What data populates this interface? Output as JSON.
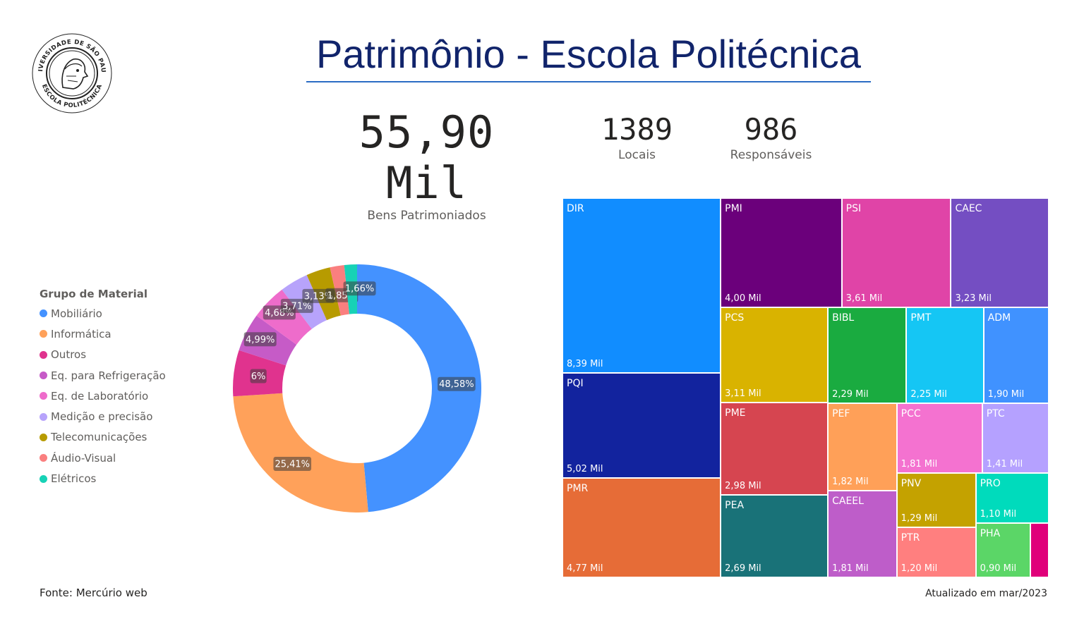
{
  "header": {
    "title": "Patrimônio - Escola Politécnica"
  },
  "logo": {
    "icon": "usp-escola-politecnica-seal-icon",
    "text": "UNIVERSIDADE DE SÃO PAULO · ESCOLA POLITÉCNICA"
  },
  "kpis": {
    "bens": {
      "value": "55,90 Mil",
      "label": "Bens Patrimoniados"
    },
    "locais": {
      "value": "1389",
      "label": "Locais"
    },
    "responsaveis": {
      "value": "986",
      "label": "Responsáveis"
    }
  },
  "legend": {
    "title": "Grupo de Material",
    "items": [
      {
        "label": "Mobiliário",
        "color": "#4492ff"
      },
      {
        "label": "Informática",
        "color": "#ffa15a"
      },
      {
        "label": "Outros",
        "color": "#e0338e"
      },
      {
        "label": "Eq. para Refrigeração",
        "color": "#c65bc7"
      },
      {
        "label": "Eq. de Laboratório",
        "color": "#ee6ccb"
      },
      {
        "label": "Medição e precisão",
        "color": "#b7a3fb"
      },
      {
        "label": "Telecomunicações",
        "color": "#b79b00"
      },
      {
        "label": "Áudio-Visual",
        "color": "#fa7f7f"
      },
      {
        "label": "Elétricos",
        "color": "#17d2b6"
      }
    ]
  },
  "chart_data": [
    {
      "type": "pie",
      "categories": [
        "Mobiliário",
        "Informática",
        "Outros",
        "Eq. para Refrigeração",
        "Eq. de Laboratório",
        "Medição e precisão",
        "Telecomunicações",
        "Áudio-Visual",
        "Elétricos"
      ],
      "values": [
        48.58,
        25.41,
        6.0,
        4.99,
        4.68,
        3.71,
        3.13,
        1.85,
        1.66
      ],
      "labels": [
        "48,58%",
        "25,41%",
        "6%",
        "4,99%",
        "4,68%",
        "3,71%",
        "3,13%",
        "1,85%",
        "1,66%"
      ],
      "colors": [
        "#4492ff",
        "#ffa15a",
        "#e0338e",
        "#c65bc7",
        "#ee6ccb",
        "#b7a3fb",
        "#b79b00",
        "#fa7f7f",
        "#17d2b6"
      ],
      "hole": true
    },
    {
      "type": "treemap",
      "items": [
        {
          "name": "DIR",
          "value": 8390,
          "label": "8,39 Mil",
          "color": "#118dff"
        },
        {
          "name": "PQI",
          "value": 5020,
          "label": "5,02 Mil",
          "color": "#12239e"
        },
        {
          "name": "PMR",
          "value": 4770,
          "label": "4,77 Mil",
          "color": "#e66c37"
        },
        {
          "name": "PMI",
          "value": 4000,
          "label": "4,00 Mil",
          "color": "#6b007b"
        },
        {
          "name": "PSI",
          "value": 3610,
          "label": "3,61 Mil",
          "color": "#e044a7"
        },
        {
          "name": "CAEC",
          "value": 3230,
          "label": "3,23 Mil",
          "color": "#744ec2"
        },
        {
          "name": "PCS",
          "value": 3110,
          "label": "3,11 Mil",
          "color": "#d9b300"
        },
        {
          "name": "PME",
          "value": 2980,
          "label": "2,98 Mil",
          "color": "#d64550"
        },
        {
          "name": "PEA",
          "value": 2690,
          "label": "2,69 Mil",
          "color": "#197278"
        },
        {
          "name": "BIBL",
          "value": 2290,
          "label": "2,29 Mil",
          "color": "#1aab40"
        },
        {
          "name": "PMT",
          "value": 2250,
          "label": "2,25 Mil",
          "color": "#15c6f4"
        },
        {
          "name": "ADM",
          "value": 1900,
          "label": "1,90 Mil",
          "color": "#4092ff"
        },
        {
          "name": "PEF",
          "value": 1820,
          "label": "1,82 Mil",
          "color": "#ffa058"
        },
        {
          "name": "CAEEL",
          "value": 1810,
          "label": "1,81 Mil",
          "color": "#be5dc9"
        },
        {
          "name": "PCC",
          "value": 1810,
          "label": "1,81 Mil",
          "color": "#f472d0"
        },
        {
          "name": "PTC",
          "value": 1410,
          "label": "1,41 Mil",
          "color": "#b5a1ff"
        },
        {
          "name": "PNV",
          "value": 1290,
          "label": "1,29 Mil",
          "color": "#c4a200"
        },
        {
          "name": "PTR",
          "value": 1200,
          "label": "1,20 Mil",
          "color": "#ff7f7f"
        },
        {
          "name": "PRO",
          "value": 1100,
          "label": "1,10 Mil",
          "color": "#00dbbc"
        },
        {
          "name": "PHA",
          "value": 900,
          "label": "0,90 Mil",
          "color": "#5bd667"
        },
        {
          "name": "",
          "value": 300,
          "label": "",
          "color": "#e0007a"
        }
      ]
    }
  ],
  "footer": {
    "source": "Fonte: Mercúrio web",
    "updated": "Atualizado em mar/2023"
  }
}
